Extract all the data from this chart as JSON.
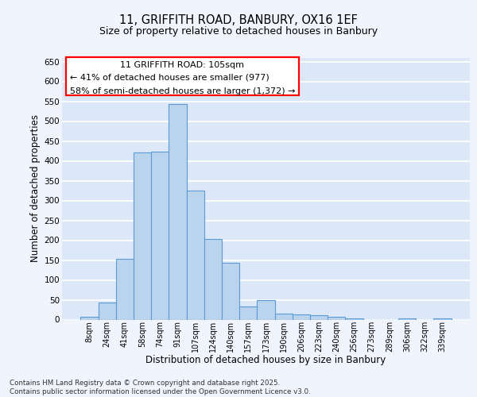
{
  "title_line1": "11, GRIFFITH ROAD, BANBURY, OX16 1EF",
  "title_line2": "Size of property relative to detached houses in Banbury",
  "xlabel": "Distribution of detached houses by size in Banbury",
  "ylabel": "Number of detached properties",
  "categories": [
    "8sqm",
    "24sqm",
    "41sqm",
    "58sqm",
    "74sqm",
    "91sqm",
    "107sqm",
    "124sqm",
    "140sqm",
    "157sqm",
    "173sqm",
    "190sqm",
    "206sqm",
    "223sqm",
    "240sqm",
    "256sqm",
    "273sqm",
    "289sqm",
    "306sqm",
    "322sqm",
    "339sqm"
  ],
  "values": [
    7,
    44,
    153,
    421,
    424,
    543,
    325,
    204,
    143,
    34,
    49,
    15,
    13,
    12,
    8,
    4,
    0,
    0,
    4,
    0,
    4
  ],
  "bar_color": "#bad4ed",
  "bar_edge_color": "#5b9bd5",
  "annotation_title": "11 GRIFFITH ROAD: 105sqm",
  "annotation_line2": "← 41% of detached houses are smaller (977)",
  "annotation_line3": "58% of semi-detached houses are larger (1,372) →",
  "ylim_max": 660,
  "yticks": [
    0,
    50,
    100,
    150,
    200,
    250,
    300,
    350,
    400,
    450,
    500,
    550,
    600,
    650
  ],
  "bg_color": "#dce8f7",
  "grid_color": "#ffffff",
  "footer_line1": "Contains HM Land Registry data © Crown copyright and database right 2025.",
  "footer_line2": "Contains public sector information licensed under the Open Government Licence v3.0.",
  "fig_bg": "#f0f4fc"
}
